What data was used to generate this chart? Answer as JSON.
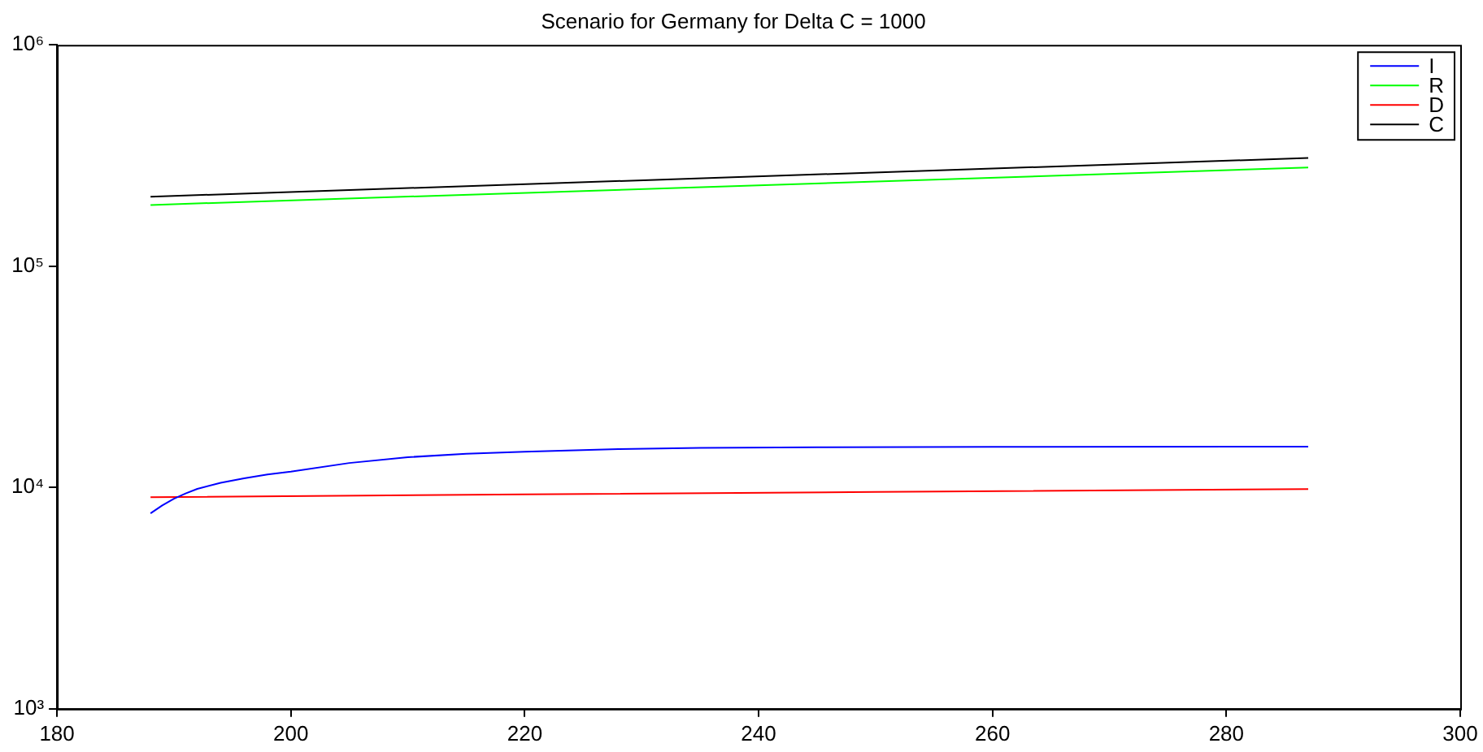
{
  "chart_data": {
    "type": "line",
    "title": "Scenario for Germany for Delta C = 1000",
    "log": "y",
    "grid": false,
    "legend": "top right",
    "marker": "none",
    "line_style": "solid",
    "xlim": [
      180,
      300
    ],
    "xticks": [
      180,
      200,
      220,
      240,
      260,
      280,
      300
    ],
    "ylim": [
      1000,
      1000000
    ],
    "yticks": [
      {
        "value": 1000,
        "label": "10³"
      },
      {
        "value": 10000,
        "label": "10⁴"
      },
      {
        "value": 100000,
        "label": "10⁵"
      },
      {
        "value": 1000000,
        "label": "10⁶"
      }
    ],
    "series": [
      {
        "name": "I",
        "color": "#0000ff",
        "x": [
          188,
          189,
          190,
          191,
          192,
          194,
          196,
          198,
          200,
          205,
          210,
          215,
          220,
          228,
          235,
          245,
          260,
          287
        ],
        "values": [
          7640,
          8300,
          8900,
          9400,
          9850,
          10500,
          11000,
          11450,
          11800,
          12900,
          13700,
          14200,
          14500,
          14900,
          15100,
          15200,
          15250,
          15300
        ]
      },
      {
        "name": "R",
        "color": "#00ff00",
        "x": [
          188,
          287
        ],
        "values": [
          189000,
          279000
        ]
      },
      {
        "name": "D",
        "color": "#ff0000",
        "x": [
          188,
          220,
          250,
          287
        ],
        "values": [
          9040,
          9300,
          9550,
          9840
        ]
      },
      {
        "name": "C",
        "color": "#000000",
        "x": [
          188,
          287
        ],
        "values": [
          206000,
          308000
        ]
      }
    ]
  }
}
